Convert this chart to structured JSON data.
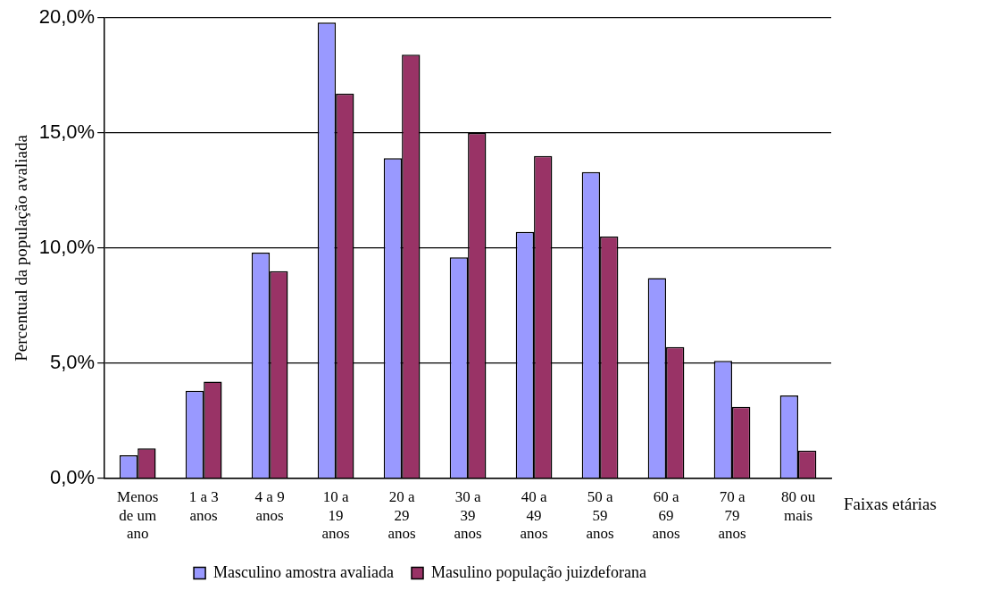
{
  "chart_data": {
    "type": "bar",
    "xlabel": "Faixas etárias",
    "ylabel": "Percentual da população avaliada",
    "categories": [
      "Menos de um ano",
      "1 a 3 anos",
      "4 a 9 anos",
      "10 a 19 anos",
      "20 a 29 anos",
      "30 a 39 anos",
      "40 a 49 anos",
      "50 a 59 anos",
      "60 a 69 anos",
      "70 a 79 anos",
      "80 ou mais"
    ],
    "series": [
      {
        "name": "Masculino amostra avaliada",
        "color": "#9999ff",
        "values": [
          1.0,
          3.8,
          9.8,
          19.8,
          13.9,
          9.6,
          10.7,
          13.3,
          8.7,
          5.1,
          3.6
        ]
      },
      {
        "name": "Masulino população juizdeforana",
        "color": "#993366",
        "values": [
          1.3,
          4.2,
          9.0,
          16.7,
          18.4,
          15.0,
          14.0,
          10.5,
          5.7,
          3.1,
          1.2
        ]
      }
    ],
    "ylim": [
      0,
      20
    ],
    "yticks": [
      {
        "value": 0,
        "label": "0,0%"
      },
      {
        "value": 5,
        "label": "5,0%"
      },
      {
        "value": 10,
        "label": "10,0%"
      },
      {
        "value": 15,
        "label": "15,0%"
      },
      {
        "value": 20,
        "label": "20,0%"
      }
    ],
    "grid": "y",
    "legend": "bottom"
  }
}
